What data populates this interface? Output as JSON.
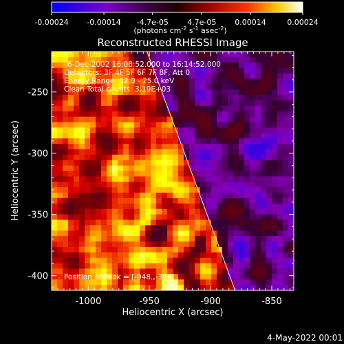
{
  "colorbar": {
    "labels": [
      "-0.00024",
      "-0.00014",
      "-4.7e-05",
      "4.7e-05",
      "0.00014",
      "0.00024"
    ],
    "values": [
      -0.00024,
      -0.00014,
      -4.7e-05,
      4.7e-05,
      0.00014,
      0.00024
    ],
    "range": [
      -0.00024,
      0.00024
    ],
    "units_main": "(photons cm",
    "units_sup1": "-2",
    "units_mid": " s",
    "units_sup2": "-1",
    "units_end": " asec",
    "units_sup3": "-2",
    "units_close": ")"
  },
  "chart_data": {
    "type": "heatmap",
    "title": "Reconstructed RHESSI Image",
    "xlabel": "Heliocentric X (arcsec)",
    "ylabel": "Heliocentric Y (arcsec)",
    "xlim": [
      -1030,
      -832
    ],
    "ylim": [
      -412,
      -217
    ],
    "xticks": [
      -1000,
      -950,
      -900,
      -850
    ],
    "xtick_labels": [
      "-1000",
      "-950",
      "-900",
      "-850"
    ],
    "yticks": [
      -250,
      -300,
      -350,
      -400
    ],
    "ytick_labels": [
      "-250",
      "-300",
      "-350",
      "-400"
    ],
    "limb_line": {
      "x": [
        -952,
        -880
      ],
      "y": [
        -217,
        -412
      ]
    },
    "peak": {
      "x": -948,
      "y": -366
    },
    "info_lines": [
      "6-Dec-2002 16:08:52.000 to 16:14:52.000",
      "Detectors: 3F 4F 5F 6F 7F 8F, Att 0",
      "Energy Range: 12.0 - 25.0 keV",
      "Clean    Total counts: 3.19E+03"
    ],
    "peak_label": "Position of Peak = [-948.,-366]",
    "colormap": [
      "#0000ff",
      "#8800bb",
      "#330033",
      "#770000",
      "#dd0000",
      "#ff7700",
      "#ffff00",
      "#ffffff"
    ]
  },
  "footer": {
    "date": "4-May-2022 00:01"
  }
}
